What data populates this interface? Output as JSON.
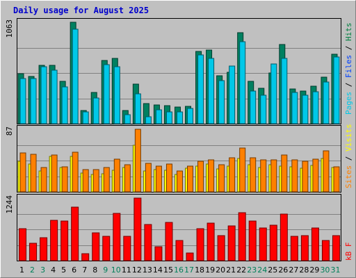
{
  "chart_data": {
    "type": "bar",
    "title": "Daily usage for August 2025",
    "x": [
      "1",
      "2",
      "3",
      "4",
      "5",
      "6",
      "7",
      "8",
      "9",
      "10",
      "11",
      "12",
      "13",
      "14",
      "15",
      "16",
      "17",
      "18",
      "19",
      "20",
      "21",
      "22",
      "23",
      "24",
      "25",
      "26",
      "27",
      "28",
      "29",
      "30",
      "31"
    ],
    "weekend_days": [
      "2",
      "3",
      "9",
      "10",
      "16",
      "17",
      "23",
      "24",
      "30",
      "31"
    ],
    "panels": [
      {
        "name": "hits-files-pages",
        "max_label": "1063",
        "ylim": [
          0,
          1063
        ],
        "right_label": [
          {
            "text": "Pages",
            "color": "#00c8e8"
          },
          {
            "text": " / ",
            "color": "#000000"
          },
          {
            "text": "Files",
            "color": "#0040ff"
          },
          {
            "text": " / ",
            "color": "#000000"
          },
          {
            "text": "Hits",
            "color": "#008040"
          }
        ],
        "series": [
          {
            "name": "Hits",
            "color": "#008060",
            "values": [
              523,
              497,
              614,
              608,
              447,
              1063,
              140,
              330,
              666,
              683,
              140,
              418,
              209,
              193,
              190,
              178,
              184,
              760,
              769,
              500,
              538,
              952,
              446,
              372,
              528,
              827,
              364,
              342,
              396,
              488,
              729
            ]
          },
          {
            "name": "Files",
            "color": "#00c8e8",
            "values": [
              473,
              473,
              600,
              559,
              388,
              991,
              125,
              267,
              619,
              600,
              97,
              313,
              76,
              145,
              126,
              124,
              163,
              719,
              683,
              455,
              603,
              857,
              343,
              298,
              627,
              681,
              325,
              301,
              333,
              440,
              701
            ]
          }
        ]
      },
      {
        "name": "visits-sites",
        "max_label": "87",
        "ylim": [
          0,
          87
        ],
        "right_label": [
          {
            "text": "Sites",
            "color": "#ff8000"
          },
          {
            "text": " / ",
            "color": "#000000"
          },
          {
            "text": "Visits",
            "color": "#ffff00"
          }
        ],
        "series": [
          {
            "name": "Visits",
            "color": "#ffff00",
            "values": [
              43,
              39,
              29,
              49,
              34,
              49,
              26,
              24,
              25,
              30,
              34,
              65,
              29,
              31,
              30,
              24,
              33,
              36,
              39,
              32,
              36,
              46,
              38,
              34,
              38,
              36,
              35,
              33,
              37,
              46,
              34
            ]
          },
          {
            "name": "Sites",
            "color": "#ff8000",
            "values": [
              54,
              52,
              34,
              51,
              35,
              55,
              31,
              31,
              34,
              45,
              38,
              87,
              40,
              36,
              39,
              29,
              36,
              43,
              44,
              38,
              47,
              61,
              47,
              44,
              44,
              51,
              44,
              43,
              45,
              57,
              35
            ]
          }
        ]
      },
      {
        "name": "kb-f",
        "max_label": "1244",
        "ylim": [
          0,
          1244
        ],
        "right_label": [
          {
            "text": "kB F",
            "color": "#ff0000"
          }
        ],
        "series": [
          {
            "name": "kB F",
            "color": "#ff0000",
            "values": [
              636,
              347,
              463,
              807,
              787,
              1067,
              141,
              559,
              487,
              940,
              478,
              1244,
              723,
              273,
              759,
              400,
              146,
              639,
              744,
              495,
              687,
              958,
              787,
              644,
              703,
              932,
              487,
              491,
              655,
              394,
              493
            ]
          }
        ]
      }
    ]
  }
}
